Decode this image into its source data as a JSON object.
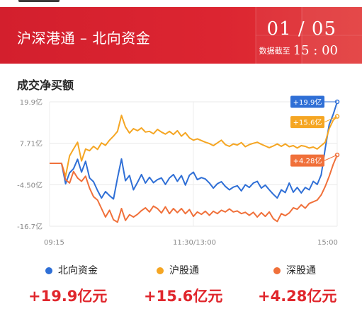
{
  "header": {
    "title": "沪深港通 – 北向资金",
    "date": "01 / 05",
    "deadline_label": "数据截至",
    "deadline_time": "15 : 00"
  },
  "section_title": "成交净买额",
  "colors": {
    "header_red": "#d9232f",
    "north": "#2f6fd6",
    "sh": "#f5a623",
    "sz": "#f0703a",
    "value_red": "#e0262c"
  },
  "chart_data": {
    "type": "line",
    "title": "成交净买额",
    "y_ticks": [
      "19.9亿",
      "7.71亿",
      "-4.50亿",
      "-16.7亿"
    ],
    "y_tick_values": [
      19.9,
      7.71,
      -4.5,
      -16.7
    ],
    "x_ticks": [
      "09:15",
      "11:30/13:00",
      "15:00"
    ],
    "ylim": [
      -16.7,
      19.9
    ],
    "grid": true,
    "n_points": 73,
    "series": [
      {
        "name": "北向资金",
        "color": "#2f6fd6",
        "end_label": "+19.9亿",
        "values": [
          1.8,
          1.8,
          1.8,
          1.8,
          -4.2,
          -1.0,
          0.2,
          3.0,
          -0.8,
          2.4,
          -2.5,
          -3.6,
          -6.2,
          -8.4,
          -6.5,
          -7.7,
          -8.7,
          -2.5,
          3.1,
          -3.3,
          -1.8,
          -6.0,
          -3.8,
          -1.5,
          -4.0,
          -2.3,
          -3.9,
          -3.0,
          -2.5,
          -4.4,
          -2.5,
          -1.5,
          -3.5,
          -1.8,
          -4.6,
          -1.7,
          -0.8,
          -3.0,
          -2.4,
          -2.8,
          -4.0,
          -5.5,
          -4.2,
          -3.6,
          -5.0,
          -6.0,
          -5.2,
          -4.8,
          -6.3,
          -4.5,
          -5.3,
          -4.0,
          -3.5,
          -5.5,
          -4.6,
          -6.0,
          -7.3,
          -8.4,
          -6.0,
          -6.8,
          -4.0,
          -6.7,
          -5.3,
          -6.9,
          -5.3,
          -6.0,
          -3.5,
          -4.4,
          -1.6,
          6.2,
          13.2,
          16.2,
          19.9
        ]
      },
      {
        "name": "沪股通",
        "color": "#f5a623",
        "end_label": "+15.6亿",
        "values": [
          1.8,
          1.8,
          1.8,
          1.8,
          -2.0,
          4.0,
          6.0,
          8.0,
          2.5,
          6.0,
          5.5,
          6.8,
          5.9,
          7.8,
          7.1,
          8.6,
          9.8,
          11.2,
          15.9,
          12.5,
          10.7,
          12.0,
          11.4,
          12.2,
          11.0,
          11.2,
          10.5,
          11.8,
          11.0,
          10.4,
          11.2,
          10.3,
          11.4,
          9.8,
          10.8,
          9.3,
          8.6,
          9.0,
          8.5,
          8.0,
          7.6,
          7.0,
          7.8,
          8.6,
          7.3,
          6.8,
          7.5,
          7.2,
          7.9,
          6.7,
          7.3,
          7.7,
          8.0,
          7.4,
          6.9,
          6.4,
          6.9,
          7.5,
          6.8,
          7.5,
          6.7,
          7.0,
          6.3,
          7.0,
          6.8,
          6.3,
          6.6,
          6.0,
          7.0,
          8.0,
          12.0,
          14.5,
          15.6
        ]
      },
      {
        "name": "深股通",
        "color": "#f0703a",
        "end_label": "+4.28亿",
        "values": [
          1.8,
          1.8,
          1.8,
          1.8,
          -3.0,
          -4.0,
          -0.6,
          -2.5,
          -3.5,
          -2.0,
          -5.5,
          -8.0,
          -9.0,
          -11.5,
          -14.0,
          -12.0,
          -14.8,
          -15.5,
          -11.5,
          -15.0,
          -13.3,
          -14.0,
          -13.2,
          -12.1,
          -11.3,
          -12.5,
          -10.8,
          -11.5,
          -12.8,
          -11.0,
          -13.0,
          -11.5,
          -12.7,
          -11.5,
          -13.0,
          -11.8,
          -13.8,
          -12.5,
          -13.2,
          -12.3,
          -13.5,
          -12.3,
          -13.0,
          -12.0,
          -12.5,
          -11.6,
          -12.5,
          -12.2,
          -13.0,
          -12.6,
          -13.5,
          -12.6,
          -14.0,
          -12.7,
          -13.8,
          -12.5,
          -14.5,
          -15.3,
          -13.0,
          -13.6,
          -12.8,
          -11.3,
          -11.7,
          -10.4,
          -11.4,
          -10.0,
          -9.5,
          -9.0,
          -7.5,
          -5.0,
          -2.0,
          1.5,
          4.28
        ]
      }
    ]
  },
  "legend": [
    {
      "label": "北向资金",
      "color": "#2f6fd6"
    },
    {
      "label": "沪股通",
      "color": "#f5a623"
    },
    {
      "label": "深股通",
      "color": "#f0703a"
    }
  ],
  "totals": [
    "+19.9亿元",
    "+15.6亿元",
    "+4.28亿元"
  ]
}
